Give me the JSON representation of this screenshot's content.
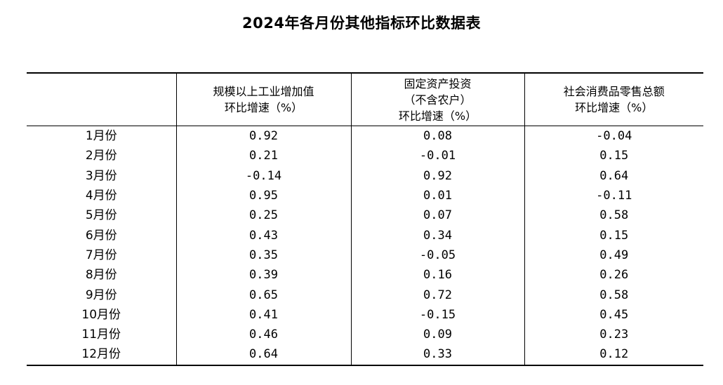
{
  "title": "2024年各月份其他指标环比数据表",
  "table": {
    "headers": [
      {
        "lines": [
          ""
        ]
      },
      {
        "lines": [
          "规模以上工业增加值",
          "环比增速（%）"
        ]
      },
      {
        "lines": [
          "固定资产投资",
          "（不含农户）",
          "环比增速（%）"
        ]
      },
      {
        "lines": [
          "社会消费品零售总额",
          "环比增速（%）"
        ]
      }
    ],
    "rows": [
      {
        "month": "1月份",
        "industry": "0.92",
        "investment": "0.08",
        "retail": "-0.04"
      },
      {
        "month": "2月份",
        "industry": "0.21",
        "investment": "-0.01",
        "retail": "0.15"
      },
      {
        "month": "3月份",
        "industry": "-0.14",
        "investment": "0.92",
        "retail": "0.64"
      },
      {
        "month": "4月份",
        "industry": "0.95",
        "investment": "0.01",
        "retail": "-0.11"
      },
      {
        "month": "5月份",
        "industry": "0.25",
        "investment": "0.07",
        "retail": "0.58"
      },
      {
        "month": "6月份",
        "industry": "0.43",
        "investment": "0.34",
        "retail": "0.15"
      },
      {
        "month": "7月份",
        "industry": "0.35",
        "investment": "-0.05",
        "retail": "0.49"
      },
      {
        "month": "8月份",
        "industry": "0.39",
        "investment": "0.16",
        "retail": "0.26"
      },
      {
        "month": "9月份",
        "industry": "0.65",
        "investment": "0.72",
        "retail": "0.58"
      },
      {
        "month": "10月份",
        "industry": "0.41",
        "investment": "-0.15",
        "retail": "0.45"
      },
      {
        "month": "11月份",
        "industry": "0.46",
        "investment": "0.09",
        "retail": "0.23"
      },
      {
        "month": "12月份",
        "industry": "0.64",
        "investment": "0.33",
        "retail": "0.12"
      }
    ]
  }
}
